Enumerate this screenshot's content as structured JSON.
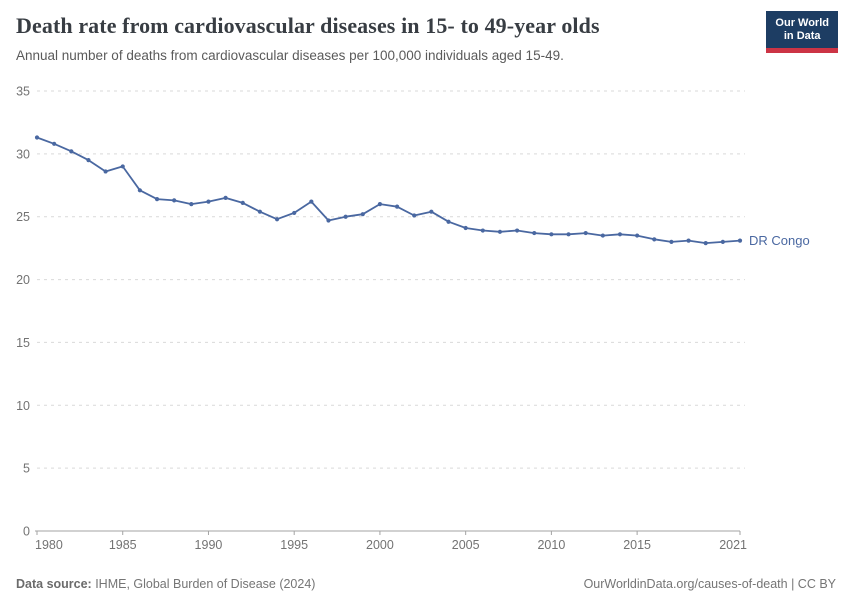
{
  "header": {
    "title": "Death rate from cardiovascular diseases in 15- to 49-year olds",
    "subtitle": "Annual number of deaths from cardiovascular diseases per 100,000 individuals aged 15-49."
  },
  "logo": {
    "line1": "Our World",
    "line2": "in Data",
    "bg_color": "#1d3d63",
    "bar_color": "#cc3445"
  },
  "footer": {
    "source_label": "Data source:",
    "source_value": " IHME, Global Burden of Disease (2024)",
    "right": "OurWorldinData.org/causes-of-death | CC BY"
  },
  "chart_data": {
    "type": "line",
    "title": "Death rate from cardiovascular diseases in 15- to 49-year olds",
    "xlabel": "",
    "ylabel": "",
    "xlim": [
      1980,
      2021
    ],
    "ylim": [
      0,
      35
    ],
    "x_ticks": [
      1980,
      1985,
      1990,
      1995,
      2000,
      2005,
      2010,
      2015,
      2021
    ],
    "y_ticks": [
      0,
      5,
      10,
      15,
      20,
      25,
      30,
      35
    ],
    "grid": "horizontal-dashed",
    "legend_position": "end-of-line-label",
    "x": [
      1980,
      1981,
      1982,
      1983,
      1984,
      1985,
      1986,
      1987,
      1988,
      1989,
      1990,
      1991,
      1992,
      1993,
      1994,
      1995,
      1996,
      1997,
      1998,
      1999,
      2000,
      2001,
      2002,
      2003,
      2004,
      2005,
      2006,
      2007,
      2008,
      2009,
      2010,
      2011,
      2012,
      2013,
      2014,
      2015,
      2016,
      2017,
      2018,
      2019,
      2020,
      2021
    ],
    "series": [
      {
        "name": "DR Congo",
        "color": "#4a68a1",
        "values": [
          31.3,
          30.8,
          30.2,
          29.5,
          28.6,
          29.0,
          27.1,
          26.4,
          26.3,
          26.0,
          26.2,
          26.5,
          26.1,
          25.4,
          24.8,
          25.3,
          26.2,
          24.7,
          25.0,
          25.2,
          26.0,
          25.8,
          25.1,
          25.4,
          24.6,
          24.1,
          23.9,
          23.8,
          23.9,
          23.7,
          23.6,
          23.6,
          23.7,
          23.5,
          23.6,
          23.5,
          23.2,
          23.0,
          23.1,
          22.9,
          23.0,
          23.1
        ]
      }
    ],
    "style": {
      "grid_color": "#d9d9d9",
      "axis_color": "#a3a3a3",
      "tick_label_color": "#737373"
    }
  }
}
